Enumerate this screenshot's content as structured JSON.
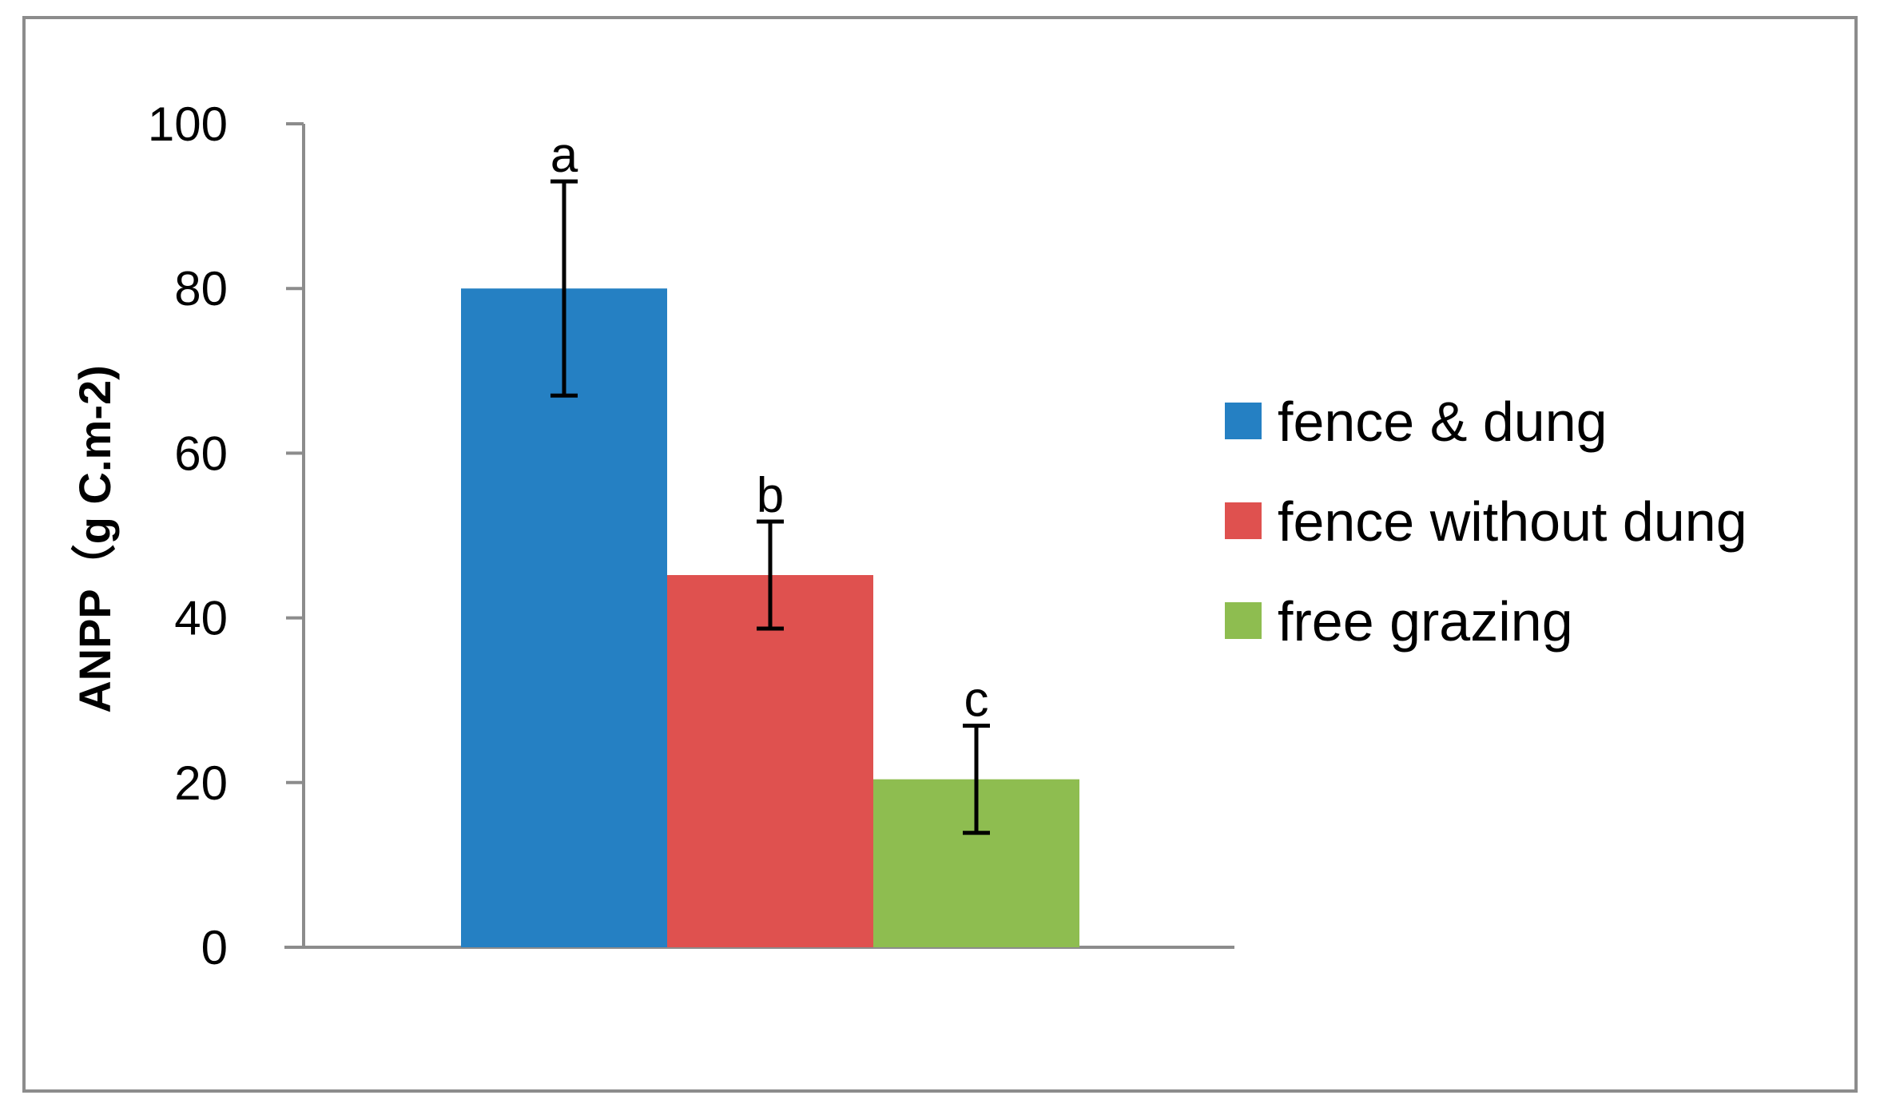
{
  "chart_data": {
    "type": "bar",
    "title": "",
    "xlabel": "",
    "ylabel": "ANPP（g C.m-2)",
    "ylim": [
      0,
      100
    ],
    "yticks": [
      0,
      20,
      40,
      60,
      80,
      100
    ],
    "grid": false,
    "legend_position": "right",
    "categories": [
      ""
    ],
    "series": [
      {
        "name": "fence & dung",
        "values": [
          80
        ],
        "error": [
          13
        ],
        "label": "a",
        "color": "#2580C3"
      },
      {
        "name": "fence without dung",
        "values": [
          45.2
        ],
        "error": [
          6.5
        ],
        "label": "b",
        "color": "#DF514F"
      },
      {
        "name": "free grazing",
        "values": [
          20.4
        ],
        "error": [
          6.5
        ],
        "label": "c",
        "color": "#8EBD50"
      }
    ]
  }
}
